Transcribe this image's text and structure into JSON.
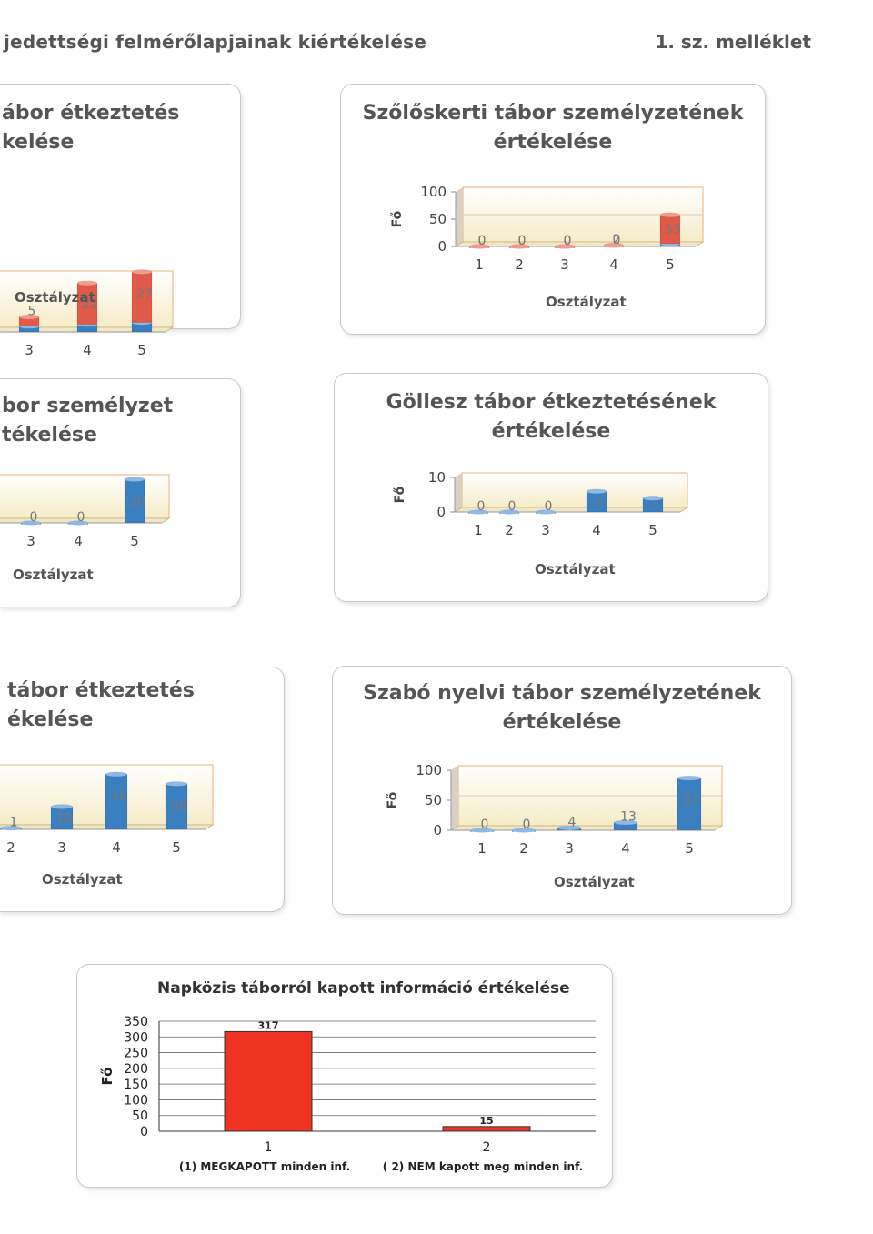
{
  "header": {
    "title": "jedettségi felmérőlapjainak kiértékelése",
    "annex": "1. sz. melléklet"
  },
  "colors": {
    "red": "#e05a4a",
    "blue": "#3a7fc0",
    "napkozis_bar": "#ee3322"
  },
  "chart_data": [
    {
      "type": "bar",
      "title_lines": [
        "ábor étkeztetés",
        "kelése"
      ],
      "xlabel": "Osztályzat",
      "categories": [
        "3",
        "4",
        "5"
      ],
      "series": [
        {
          "values": [
            3,
            4,
            5
          ]
        },
        {
          "values": [
            5,
            22,
            27
          ]
        }
      ]
    },
    {
      "type": "bar",
      "title_lines": [
        "Szőlőskerti tábor személyzetének",
        "értékelése"
      ],
      "xlabel": "Osztályzat",
      "ylabel": "Fő",
      "categories": [
        "1",
        "2",
        "3",
        "4",
        "5"
      ],
      "yticks": [
        "100",
        "50",
        "0"
      ],
      "ylim": [
        0,
        100
      ],
      "series": [
        {
          "values": [
            0,
            0,
            0,
            2,
            5
          ]
        },
        {
          "values": [
            0,
            0,
            0,
            0,
            53
          ]
        }
      ]
    },
    {
      "type": "bar",
      "title_lines": [
        "bor személyzet",
        "tékelése"
      ],
      "xlabel": "Osztályzat",
      "categories": [
        "3",
        "4",
        "5"
      ],
      "series": [
        {
          "values": [
            0,
            0,
            10
          ]
        }
      ]
    },
    {
      "type": "bar",
      "title_lines": [
        "Göllesz tábor étkeztetésének",
        "értékelése"
      ],
      "xlabel": "Osztályzat",
      "ylabel": "Fő",
      "categories": [
        "1",
        "2",
        "3",
        "4",
        "5"
      ],
      "yticks": [
        "10",
        "0"
      ],
      "ylim": [
        0,
        10
      ],
      "series": [
        {
          "values": [
            0,
            0,
            0,
            6,
            4
          ]
        }
      ]
    },
    {
      "type": "bar",
      "title_lines": [
        "tábor étkeztetés",
        "ékelése"
      ],
      "xlabel": "Osztályzat",
      "categories": [
        "2",
        "3",
        "4",
        "5"
      ],
      "series": [
        {
          "values": [
            1,
            19,
            46,
            38
          ]
        }
      ]
    },
    {
      "type": "bar",
      "title_lines": [
        "Szabó nyelvi tábor személyzetének",
        "értékelése"
      ],
      "xlabel": "Osztályzat",
      "ylabel": "Fő",
      "categories": [
        "1",
        "2",
        "3",
        "4",
        "5"
      ],
      "yticks": [
        "100",
        "50",
        "0"
      ],
      "ylim": [
        0,
        100
      ],
      "series": [
        {
          "values": [
            0,
            0,
            4,
            13,
            87
          ]
        }
      ]
    },
    {
      "type": "bar",
      "title": "Napközis táborról kapott információ értékelése",
      "ylabel": "Fő",
      "categories": [
        "1",
        "2"
      ],
      "category_captions": [
        "(1) MEGKAPOTT minden inf.",
        "( 2) NEM kapott meg minden inf."
      ],
      "yticks": [
        "350",
        "300",
        "250",
        "200",
        "150",
        "100",
        "50",
        "0"
      ],
      "ylim": [
        0,
        350
      ],
      "series": [
        {
          "values": [
            317,
            15
          ]
        }
      ]
    }
  ]
}
